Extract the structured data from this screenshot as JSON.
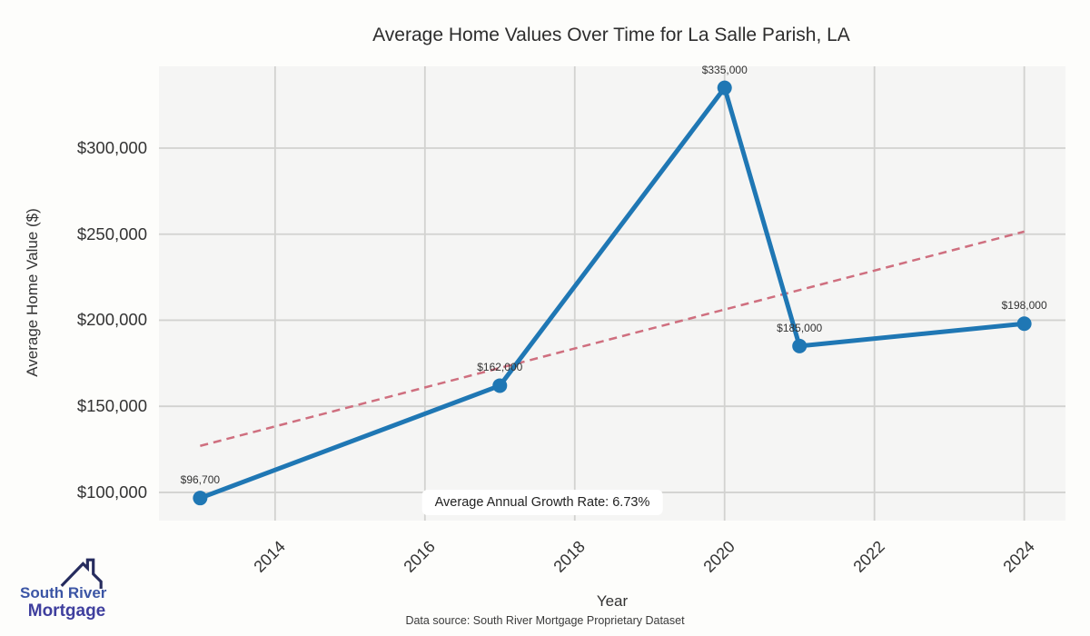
{
  "page": {
    "footer": "Data source: South River Mortgage Proprietary Dataset"
  },
  "logo": {
    "line1": "South River",
    "line2": "Mortgage",
    "text_color1": "#3b55a5",
    "text_color2": "#3f3f9e",
    "roof_color": "#262c5e"
  },
  "chart_data": {
    "type": "line",
    "title": "Average Home Values Over Time for La Salle Parish, LA",
    "xlabel": "Year",
    "ylabel": "Average Home Value ($)",
    "x": [
      2013,
      2017,
      2020,
      2021,
      2024
    ],
    "values": [
      96700,
      162000,
      335000,
      185000,
      198000
    ],
    "point_labels": [
      "$96,700",
      "$162,000",
      "$335,000",
      "$185,000",
      "$198,000"
    ],
    "x_ticks": [
      2014,
      2016,
      2018,
      2020,
      2022,
      2024
    ],
    "x_tick_labels": [
      "2014",
      "2016",
      "2018",
      "2020",
      "2022",
      "2024"
    ],
    "y_ticks": [
      100000,
      150000,
      200000,
      250000,
      300000
    ],
    "y_tick_labels": [
      "$100,000",
      "$150,000",
      "$200,000",
      "$250,000",
      "$300,000"
    ],
    "xlim": [
      2012.45,
      2024.55
    ],
    "ylim": [
      83600,
      347500
    ],
    "grid": true,
    "legend": "none",
    "plot_bg": "#f5f5f4",
    "grid_color": "#d2d2d0",
    "line_color": "#1f77b4",
    "line_width": 5,
    "marker_radius": 8,
    "annotation": "Average Annual Growth Rate: 6.73%",
    "trend_line": {
      "style": "dashed",
      "color": "#cf6f7f",
      "width": 2.5,
      "x": [
        2013,
        2024
      ],
      "values": [
        127000,
        251500
      ]
    }
  }
}
